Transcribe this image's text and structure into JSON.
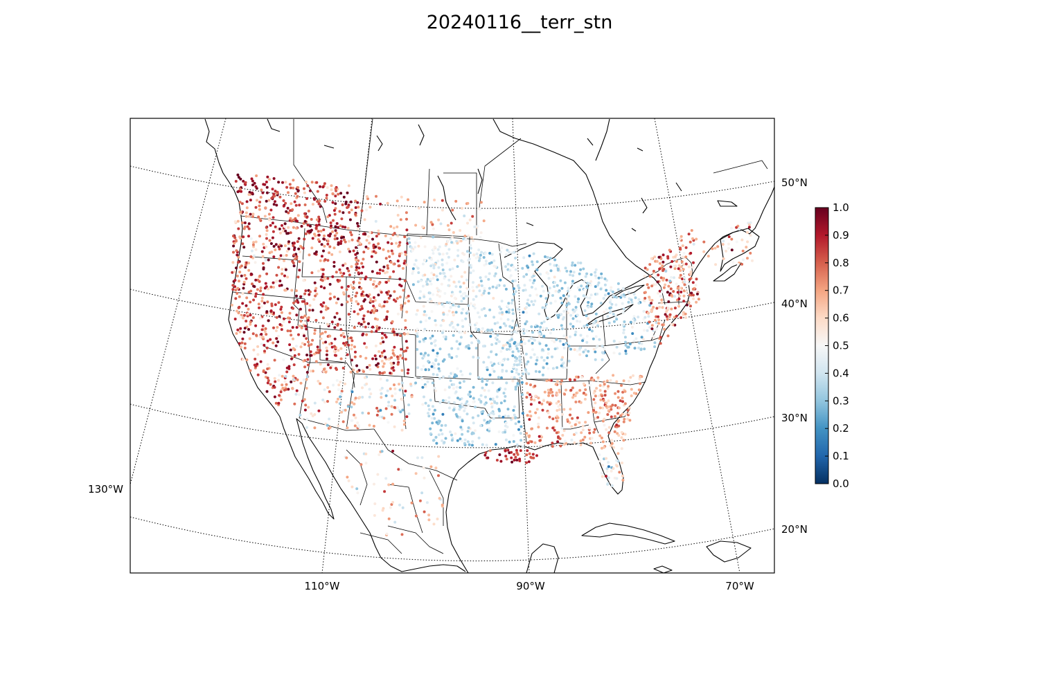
{
  "title": "20240116__terr_stn",
  "map": {
    "projection": "lambert-conformal",
    "meridians": [
      "130°W",
      "110°W",
      "90°W",
      "70°W"
    ],
    "parallels": [
      "20°N",
      "30°N",
      "40°N",
      "50°N"
    ]
  },
  "colorbar": {
    "colormap": "RdBu_r",
    "min": 0.0,
    "max": 1.0,
    "tick_labels": [
      "0.0",
      "0.1",
      "0.2",
      "0.3",
      "0.4",
      "0.5",
      "0.6",
      "0.7",
      "0.8",
      "0.9",
      "1.0"
    ],
    "colors": [
      "#053061",
      "#2166ac",
      "#4393c3",
      "#92c5de",
      "#d1e5f0",
      "#f7f7f7",
      "#fddbc7",
      "#f4a582",
      "#d6604d",
      "#b2182b",
      "#67001f"
    ]
  },
  "chart_data": {
    "type": "scatter",
    "title": "20240116__terr_stn",
    "value_range": [
      0.0,
      1.0
    ],
    "description_of_values": "station markers colored by value; high values (0.8–1.0) dominate the western mountains, Pacific coast and New England; low-to-mid values (0.2–0.5) dominate the Plains, Midwest and Texas; mixed 0.6–0.8 across the Southeast"
  }
}
